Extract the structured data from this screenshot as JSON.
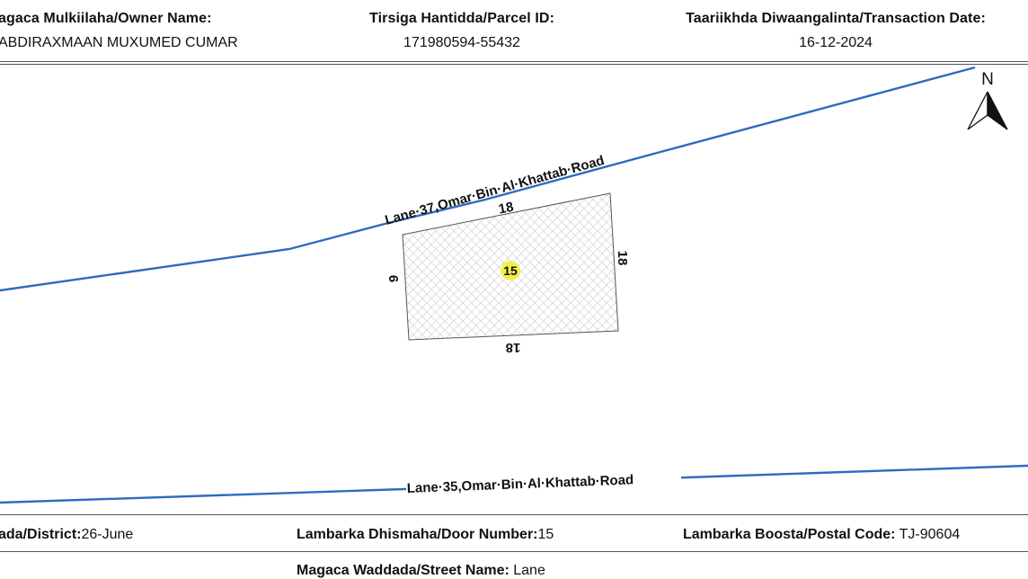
{
  "header": {
    "owner_label": "agaca Mulkiilaha/Owner Name:",
    "owner_value": "ABDIRAXMAAN MUXUMED CUMAR",
    "parcel_label": "Tirsiga Hantidda/Parcel ID:",
    "parcel_value": "171980594-55432",
    "date_label": "Taariikhda Diwaangalinta/Transaction Date:",
    "date_value": "16-12-2024"
  },
  "map": {
    "north_label": "N",
    "road_top_label": "Lane·37,Omar·Bin·Al·Khattab·Road",
    "road_bottom_label": "Lane·35,Omar·Bin·Al·Khattab·Road",
    "parcel_number": "15",
    "dim_top": "18",
    "dim_right": "18",
    "dim_bottom": "18",
    "dim_left": "9",
    "road_color": "#2f6bbf",
    "parcel_highlight": "#f5ef4a"
  },
  "footer": {
    "district_label": "ada/District:",
    "district_value": "26-June",
    "door_label": "Lambarka Dhismaha/Door Number:",
    "door_value": "15",
    "postal_label": "Lambarka Boosta/Postal Code:",
    "postal_value": " TJ-90604",
    "street_label": "Magaca Waddada/Street Name:",
    "street_value": " Lane"
  }
}
